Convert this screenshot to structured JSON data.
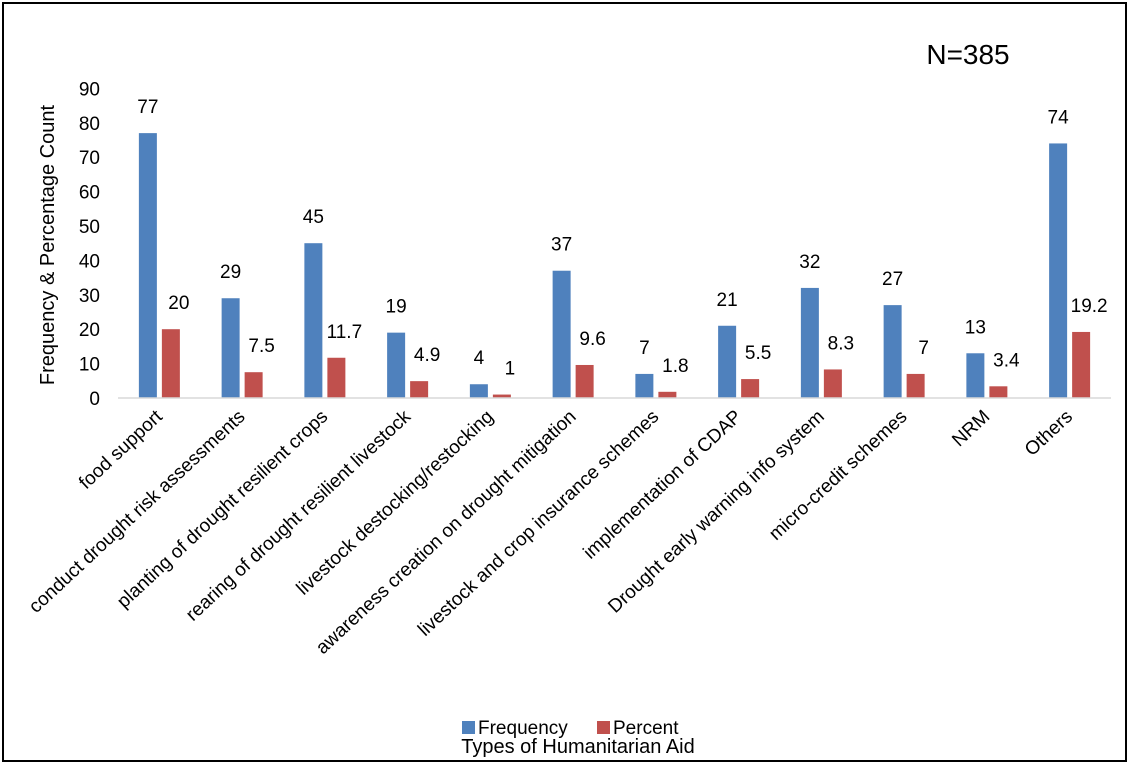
{
  "chart_data": {
    "type": "bar",
    "annotation": "N=385",
    "ylabel": "Frequency & Percentage Count",
    "xlabel": "Types of Humanitarian Aid",
    "ylim": [
      0,
      90
    ],
    "yticks": [
      0,
      10,
      20,
      30,
      40,
      50,
      60,
      70,
      80,
      90
    ],
    "grid": false,
    "legend": "bottom",
    "categories": [
      "food support",
      "conduct drought risk assessments",
      "planting of drought resilient crops",
      "rearing of drought resilient livestock",
      "livestock destocking/restocking",
      "awareness creation on drought mitigation",
      "livestock and crop insurance schemes",
      "implementation of CDAP",
      "Drought early warning info system",
      "micro-credit schemes",
      "NRM",
      "Others"
    ],
    "series": [
      {
        "name": "Frequency",
        "color": "#4f81bd",
        "values": [
          77,
          29,
          45,
          19,
          4,
          37,
          7,
          21,
          32,
          27,
          13,
          74
        ],
        "labels": [
          "77",
          "29",
          "45",
          "19",
          "4",
          "37",
          "7",
          "21",
          "32",
          "27",
          "13",
          "74"
        ]
      },
      {
        "name": "Percent",
        "color": "#c0504d",
        "values": [
          20,
          7.5,
          11.7,
          4.9,
          1,
          9.6,
          1.8,
          5.5,
          8.3,
          7,
          3.4,
          19.2
        ],
        "labels": [
          "20",
          "7.5",
          "11.7",
          "4.9",
          "1",
          "9.6",
          "1.8",
          "5.5",
          "8.3",
          "7",
          "3.4",
          "19.2"
        ]
      }
    ]
  }
}
